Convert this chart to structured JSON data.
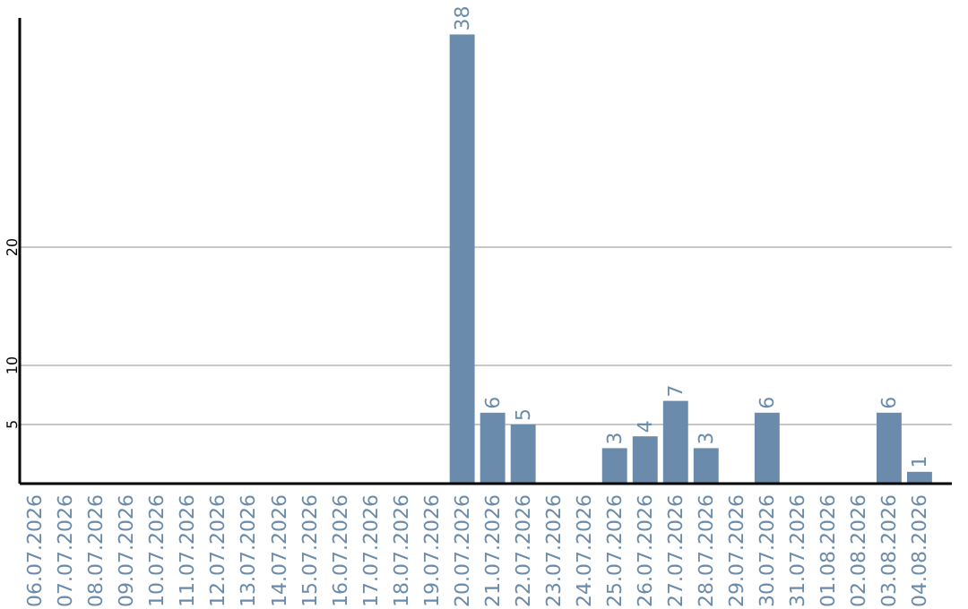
{
  "chart_data": {
    "type": "bar",
    "categories": [
      "06.07.2026",
      "07.07.2026",
      "08.07.2026",
      "09.07.2026",
      "10.07.2026",
      "11.07.2026",
      "12.07.2026",
      "13.07.2026",
      "14.07.2026",
      "15.07.2026",
      "16.07.2026",
      "17.07.2026",
      "18.07.2026",
      "19.07.2026",
      "20.07.2026",
      "21.07.2026",
      "22.07.2026",
      "23.07.2026",
      "24.07.2026",
      "25.07.2026",
      "26.07.2026",
      "27.07.2026",
      "28.07.2026",
      "29.07.2026",
      "30.07.2026",
      "31.07.2026",
      "01.08.2026",
      "02.08.2026",
      "03.08.2026",
      "04.08.2026"
    ],
    "values": [
      0,
      0,
      0,
      0,
      0,
      0,
      0,
      0,
      0,
      0,
      0,
      0,
      0,
      0,
      38,
      6,
      5,
      0,
      0,
      3,
      4,
      7,
      3,
      0,
      6,
      0,
      0,
      0,
      6,
      1
    ],
    "value_labels": [
      null,
      null,
      null,
      null,
      null,
      null,
      null,
      null,
      null,
      null,
      null,
      null,
      null,
      null,
      "38",
      "6",
      "5",
      null,
      null,
      "3",
      "4",
      "7",
      "3",
      null,
      "6",
      null,
      null,
      null,
      "6",
      "1"
    ],
    "color": "#6a8bab",
    "ylim": [
      0,
      39.4
    ],
    "yticks": [
      5,
      10,
      20
    ],
    "grid": "y"
  }
}
